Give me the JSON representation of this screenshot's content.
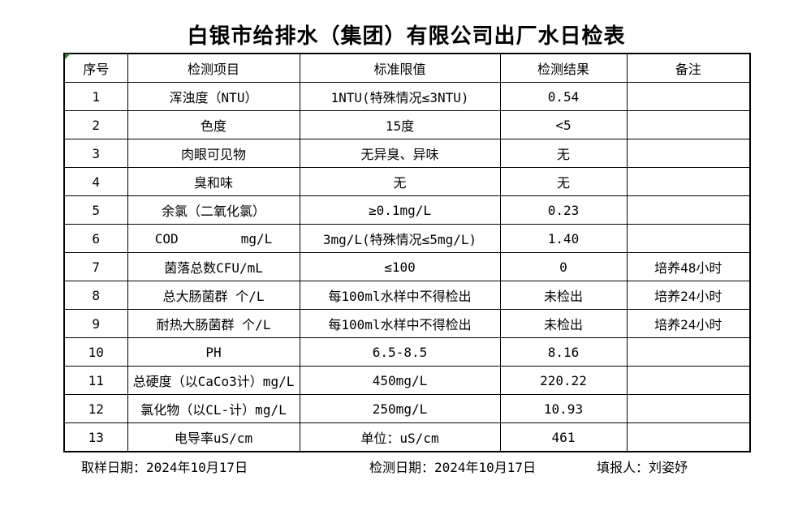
{
  "title": "白银市给排水（集团）有限公司出厂水日检表",
  "table": {
    "headers": [
      "序号",
      "检测项目",
      "标准限值",
      "检测结果",
      "备注"
    ],
    "rows": [
      [
        "1",
        "浑浊度（NTU）",
        "1NTU(特殊情况≤3NTU)",
        "0.54",
        ""
      ],
      [
        "2",
        "色度",
        "15度",
        "<5",
        ""
      ],
      [
        "3",
        "肉眼可见物",
        "无异臭、异味",
        "无",
        ""
      ],
      [
        "4",
        "臭和味",
        "无",
        "无",
        ""
      ],
      [
        "5",
        "余氯（二氧化氯）",
        "≥0.1mg/L",
        "0.23",
        ""
      ],
      [
        "6",
        "COD        mg/L",
        "3mg/L(特殊情况≤5mg/L)",
        "1.40",
        ""
      ],
      [
        "7",
        "菌落总数CFU/mL",
        "≤100",
        "0",
        "培养48小时"
      ],
      [
        "8",
        "总大肠菌群 个/L",
        "每100ml水样中不得检出",
        "未检出",
        "培养24小时"
      ],
      [
        "9",
        "耐热大肠菌群 个/L",
        "每100ml水样中不得检出",
        "未检出",
        "培养24小时"
      ],
      [
        "10",
        "PH",
        "6.5-8.5",
        "8.16",
        ""
      ],
      [
        "11",
        "总硬度（以CaCo3计）mg/L",
        "450mg/L",
        "220.22",
        ""
      ],
      [
        "12",
        "氯化物（以CL-计）mg/L",
        "250mg/L",
        "10.93",
        ""
      ],
      [
        "13",
        "电导率uS/cm",
        "单位：uS/cm",
        "461",
        ""
      ]
    ]
  },
  "footer": {
    "sampling_date": "取样日期：2024年10月17日",
    "test_date": "检测日期：2024年10月17日",
    "reporter": "填报人：刘姿妤"
  },
  "colors": {
    "error_indicator_green": "#2f7d2f",
    "border_black": "#000000",
    "background_white": "#ffffff"
  }
}
